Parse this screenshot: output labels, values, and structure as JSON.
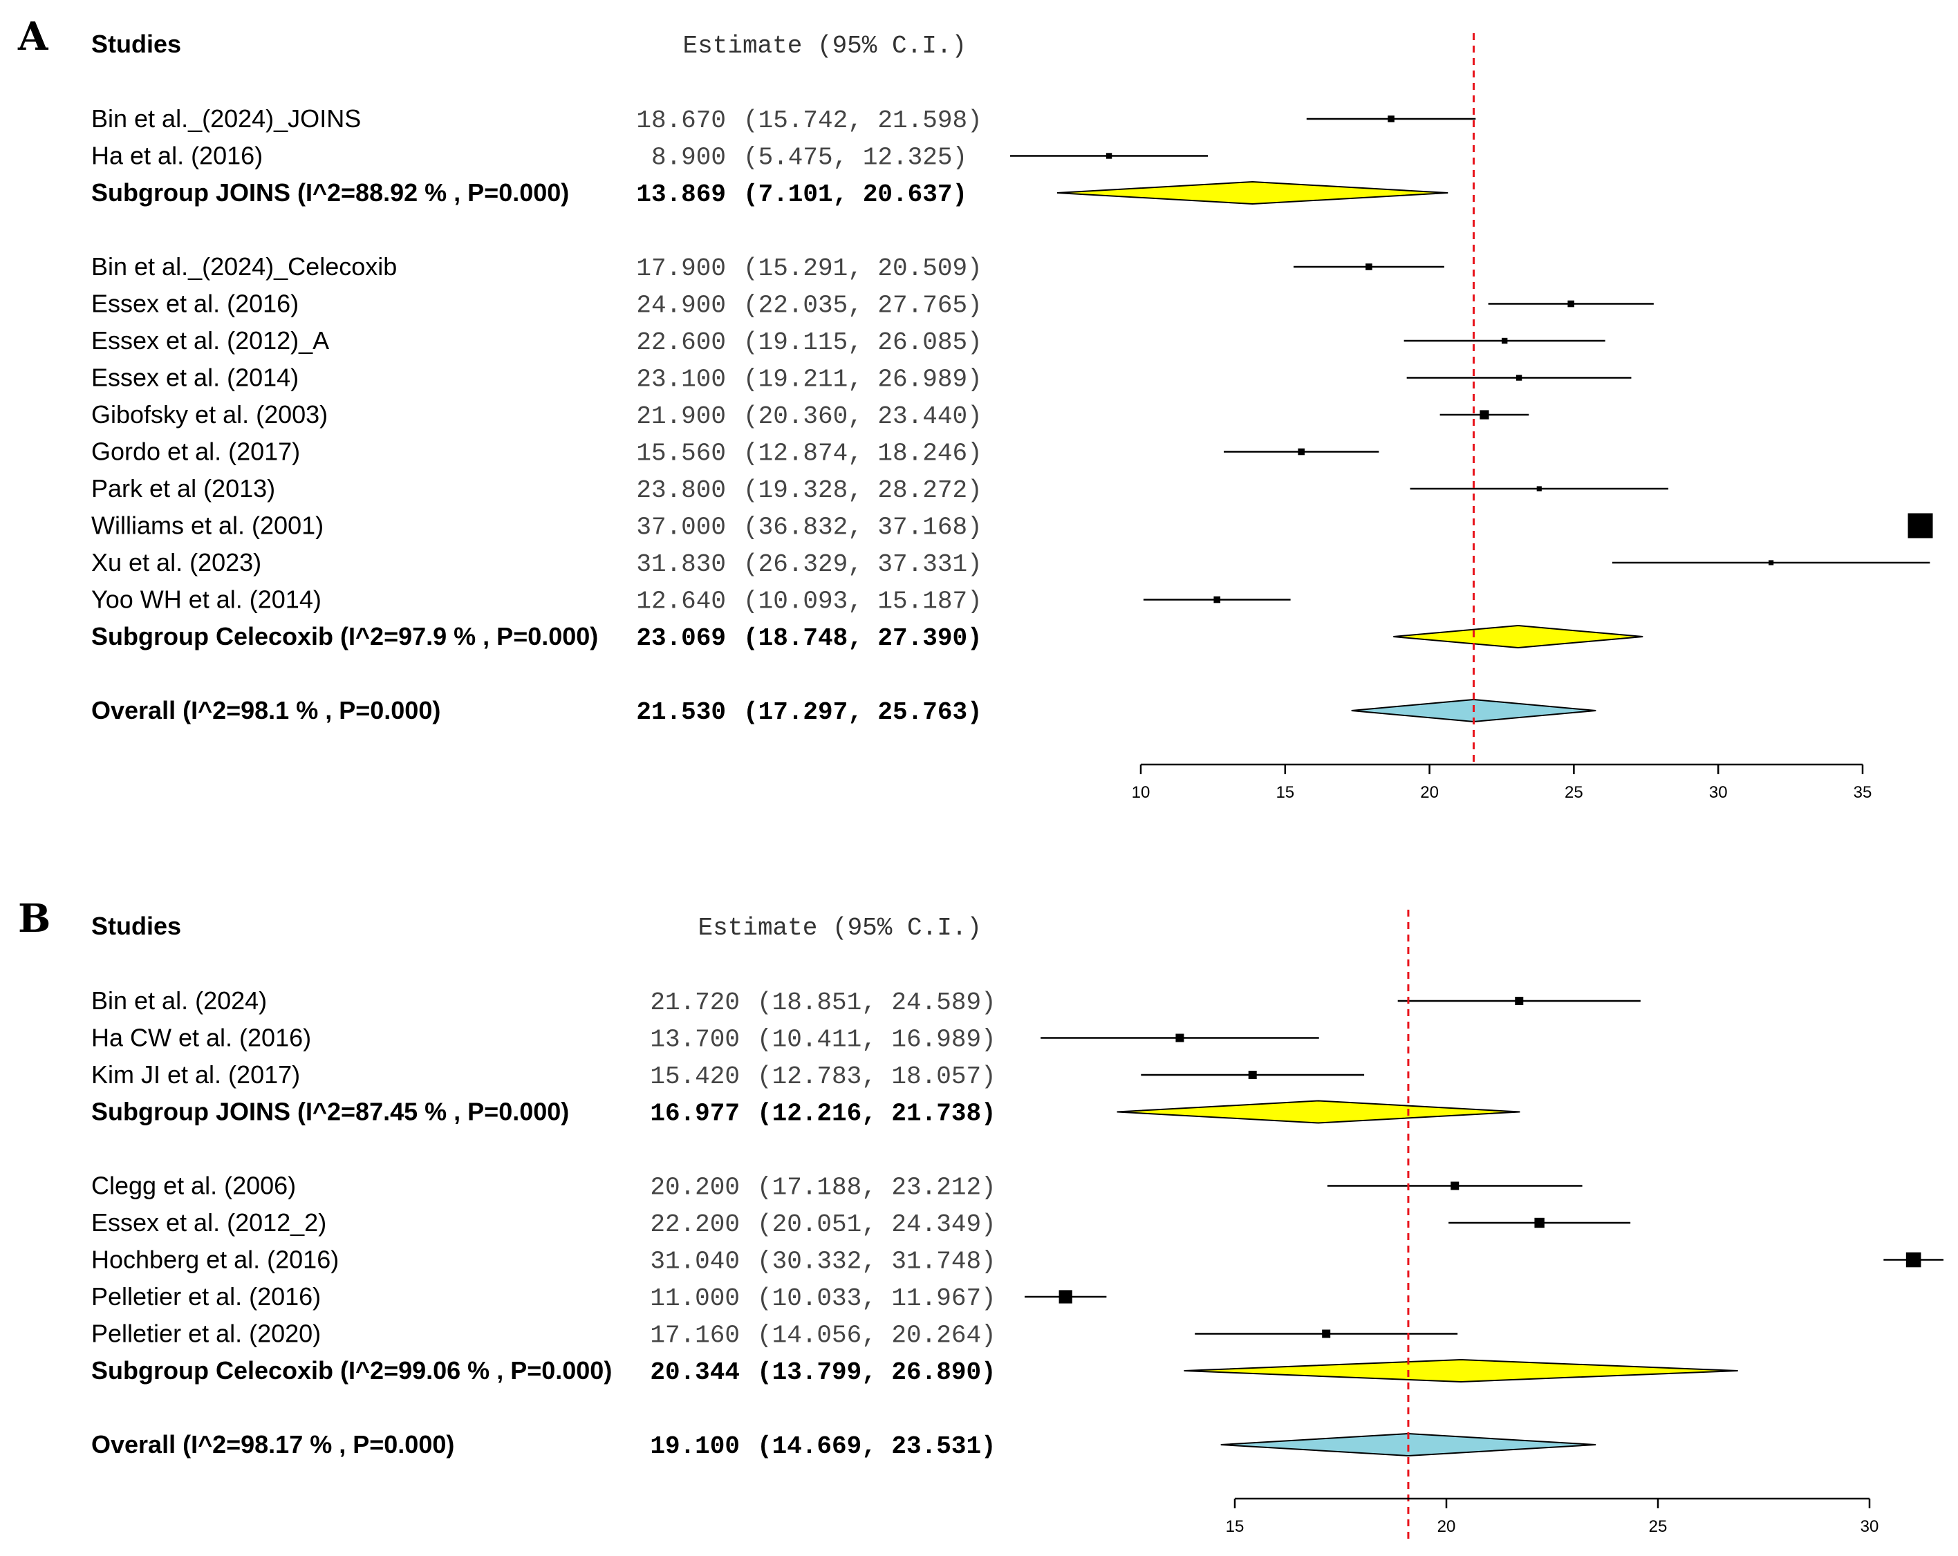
{
  "chart_data": [
    {
      "type": "forest",
      "panel_label": "A",
      "header": {
        "studies": "Studies",
        "estimate": "Estimate (95% C.I.)"
      },
      "xlim": [
        10,
        35
      ],
      "xticks": [
        10,
        15,
        20,
        25,
        30,
        35
      ],
      "reference_line": 21.53,
      "rows": [
        {
          "kind": "study",
          "label": "Bin et al._(2024)_JOINS",
          "est_text": "18.670",
          "ci_text": "(15.742, 21.598)",
          "est": 18.67,
          "lo": 15.742,
          "hi": 21.598,
          "w": 0.8
        },
        {
          "kind": "study",
          "label": "Ha et al. (2016)",
          "est_text": "8.900",
          "ci_text": "(5.475, 12.325)",
          "est": 8.9,
          "lo": 5.475,
          "hi": 12.325,
          "w": 0.7
        },
        {
          "kind": "subgroup",
          "label": "Subgroup JOINS (I^2=88.92 % , P=0.000)",
          "est_text": "13.869",
          "ci_text": "(7.101, 20.637)",
          "est": 13.869,
          "lo": 7.101,
          "hi": 20.637,
          "color": "#ffff00"
        },
        {
          "kind": "gap"
        },
        {
          "kind": "study",
          "label": "Bin et al._(2024)_Celecoxib",
          "est_text": "17.900",
          "ci_text": "(15.291, 20.509)",
          "est": 17.9,
          "lo": 15.291,
          "hi": 20.509,
          "w": 0.8
        },
        {
          "kind": "study",
          "label": "Essex et al. (2016)",
          "est_text": "24.900",
          "ci_text": "(22.035, 27.765)",
          "est": 24.9,
          "lo": 22.035,
          "hi": 27.765,
          "w": 0.8
        },
        {
          "kind": "study",
          "label": "Essex et al. (2012)_A",
          "est_text": "22.600",
          "ci_text": "(19.115, 26.085)",
          "est": 22.6,
          "lo": 19.115,
          "hi": 26.085,
          "w": 0.7
        },
        {
          "kind": "study",
          "label": "Essex et al. (2014)",
          "est_text": "23.100",
          "ci_text": "(19.211, 26.989)",
          "est": 23.1,
          "lo": 19.211,
          "hi": 26.989,
          "w": 0.7
        },
        {
          "kind": "study",
          "label": "Gibofsky et al. (2003)",
          "est_text": "21.900",
          "ci_text": "(20.360, 23.440)",
          "est": 21.9,
          "lo": 20.36,
          "hi": 23.44,
          "w": 1.1
        },
        {
          "kind": "study",
          "label": "Gordo et al. (2017)",
          "est_text": "15.560",
          "ci_text": "(12.874, 18.246)",
          "est": 15.56,
          "lo": 12.874,
          "hi": 18.246,
          "w": 0.8
        },
        {
          "kind": "study",
          "label": "Park et al (2013)",
          "est_text": "23.800",
          "ci_text": "(19.328, 28.272)",
          "est": 23.8,
          "lo": 19.328,
          "hi": 28.272,
          "w": 0.6
        },
        {
          "kind": "study",
          "label": "Williams et al. (2001)",
          "est_text": "37.000",
          "ci_text": "(36.832, 37.168)",
          "est": 37.0,
          "lo": 36.832,
          "hi": 37.168,
          "w": 3.0
        },
        {
          "kind": "study",
          "label": "Xu et al. (2023)",
          "est_text": "31.830",
          "ci_text": "(26.329, 37.331)",
          "est": 31.83,
          "lo": 26.329,
          "hi": 37.331,
          "w": 0.6
        },
        {
          "kind": "study",
          "label": "Yoo WH et al. (2014)",
          "est_text": "12.640",
          "ci_text": "(10.093, 15.187)",
          "est": 12.64,
          "lo": 10.093,
          "hi": 15.187,
          "w": 0.8
        },
        {
          "kind": "subgroup",
          "label": "Subgroup Celecoxib (I^2=97.9 % , P=0.000)",
          "est_text": "23.069",
          "ci_text": "(18.748, 27.390)",
          "est": 23.069,
          "lo": 18.748,
          "hi": 27.39,
          "color": "#ffff00"
        },
        {
          "kind": "gap"
        },
        {
          "kind": "overall",
          "label": "Overall (I^2=98.1 % , P=0.000)",
          "est_text": "21.530",
          "ci_text": "(17.297, 25.763)",
          "est": 21.53,
          "lo": 17.297,
          "hi": 25.763,
          "color": "#8fd3e0"
        }
      ]
    },
    {
      "type": "forest",
      "panel_label": "B",
      "header": {
        "studies": "Studies",
        "estimate": "Estimate (95% C.I.)"
      },
      "xlim": [
        15,
        30
      ],
      "xticks": [
        15,
        20,
        25,
        30
      ],
      "reference_line": 19.1,
      "rows": [
        {
          "kind": "study",
          "label": "Bin et al. (2024)",
          "est_text": "21.720",
          "ci_text": "(18.851, 24.589)",
          "est": 21.72,
          "lo": 18.851,
          "hi": 24.589,
          "w": 1.0
        },
        {
          "kind": "study",
          "label": "Ha CW et al. (2016)",
          "est_text": "13.700",
          "ci_text": "(10.411, 16.989)",
          "est": 13.7,
          "lo": 10.411,
          "hi": 16.989,
          "w": 1.0
        },
        {
          "kind": "study",
          "label": "Kim JI et al. (2017)",
          "est_text": "15.420",
          "ci_text": "(12.783, 18.057)",
          "est": 15.42,
          "lo": 12.783,
          "hi": 18.057,
          "w": 1.0
        },
        {
          "kind": "subgroup",
          "label": "Subgroup JOINS (I^2=87.45 % , P=0.000)",
          "est_text": "16.977",
          "ci_text": "(12.216, 21.738)",
          "est": 16.977,
          "lo": 12.216,
          "hi": 21.738,
          "color": "#ffff00"
        },
        {
          "kind": "gap"
        },
        {
          "kind": "study",
          "label": "Clegg et al. (2006)",
          "est_text": "20.200",
          "ci_text": "(17.188, 23.212)",
          "est": 20.2,
          "lo": 17.188,
          "hi": 23.212,
          "w": 1.0
        },
        {
          "kind": "study",
          "label": "Essex et al. (2012_2)",
          "est_text": "22.200",
          "ci_text": "(20.051, 24.349)",
          "est": 22.2,
          "lo": 20.051,
          "hi": 24.349,
          "w": 1.2
        },
        {
          "kind": "study",
          "label": "Hochberg et al. (2016)",
          "est_text": "31.040",
          "ci_text": "(30.332, 31.748)",
          "est": 31.04,
          "lo": 30.332,
          "hi": 31.748,
          "w": 1.8
        },
        {
          "kind": "study",
          "label": "Pelletier et al. (2016)",
          "est_text": "11.000",
          "ci_text": "(10.033, 11.967)",
          "est": 11.0,
          "lo": 10.033,
          "hi": 11.967,
          "w": 1.6
        },
        {
          "kind": "study",
          "label": "Pelletier et al. (2020)",
          "est_text": "17.160",
          "ci_text": "(14.056, 20.264)",
          "est": 17.16,
          "lo": 14.056,
          "hi": 20.264,
          "w": 1.0
        },
        {
          "kind": "subgroup",
          "label": "Subgroup Celecoxib (I^2=99.06 % , P=0.000)",
          "est_text": "20.344",
          "ci_text": "(13.799, 26.890)",
          "est": 20.344,
          "lo": 13.799,
          "hi": 26.89,
          "color": "#ffff00"
        },
        {
          "kind": "gap"
        },
        {
          "kind": "overall",
          "label": "Overall (I^2=98.17 % , P=0.000)",
          "est_text": "19.100",
          "ci_text": "(14.669, 23.531)",
          "est": 19.1,
          "lo": 14.669,
          "hi": 23.531,
          "color": "#8fd3e0"
        }
      ]
    }
  ]
}
